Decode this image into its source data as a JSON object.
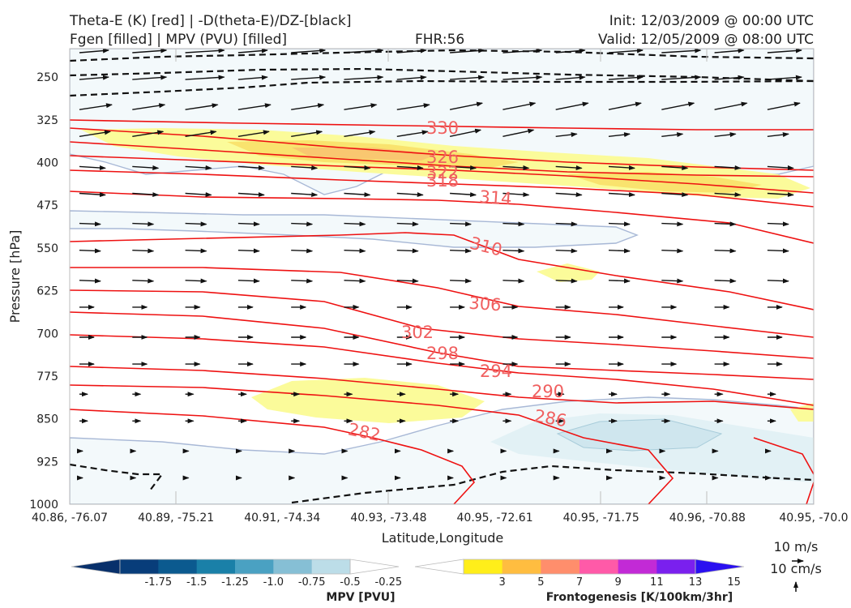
{
  "header": {
    "title_line1": "Theta-E (K) [red] | -D(theta-E)/DZ-[black]",
    "title_line2": "Fgen [filled] | MPV (PVU) [filled]",
    "fhr": "FHR:56",
    "init": "Init: 12/03/2009 @ 00:00 UTC",
    "valid": "Valid: 12/05/2009 @ 08:00 UTC"
  },
  "chart_data": {
    "type": "cross-section",
    "xlabel": "Latitude,Longitude",
    "ylabel": "Pressure [hPa]",
    "ylim": [
      1000,
      200
    ],
    "y_ticks": [
      "250",
      "325",
      "400",
      "475",
      "550",
      "625",
      "700",
      "775",
      "850",
      "925",
      "1000"
    ],
    "x_ticks": [
      "40.86, -76.07",
      "40.89, -75.21",
      "40.91, -74.34",
      "40.93, -73.48",
      "40.95, -72.61",
      "40.95, -71.75",
      "40.96, -70.88",
      "40.95, -70.0"
    ],
    "theta_e_contour_labels": [
      "330",
      "326",
      "322",
      "322",
      "318",
      "314",
      "310",
      "306",
      "302",
      "298",
      "294",
      "290",
      "286",
      "282"
    ],
    "colorbar_mpv": {
      "title": "MPV [PVU]",
      "ticks": [
        "-1.75",
        "-1.5",
        "-1.25",
        "-1.0",
        "-0.75",
        "-0.5",
        "-0.25"
      ],
      "colors": [
        "#08306b",
        "#083d7a",
        "#0b5a8f",
        "#1a80a8",
        "#4aa1c2",
        "#86bfd5",
        "#bcdde8",
        "#ffffff"
      ]
    },
    "colorbar_fgen": {
      "title": "Frontogenesis [K/100km/3hr]",
      "ticks": [
        "3",
        "5",
        "7",
        "9",
        "11",
        "13",
        "15"
      ],
      "colors": [
        "#ffffff",
        "#ffee1a",
        "#ffbd40",
        "#ff8e6c",
        "#ff5aa8",
        "#c22ad6",
        "#7a20ee",
        "#2a10f0"
      ]
    },
    "wind_reference": {
      "label_top": "10 m/s",
      "label_bottom": "10 cm/s"
    }
  }
}
